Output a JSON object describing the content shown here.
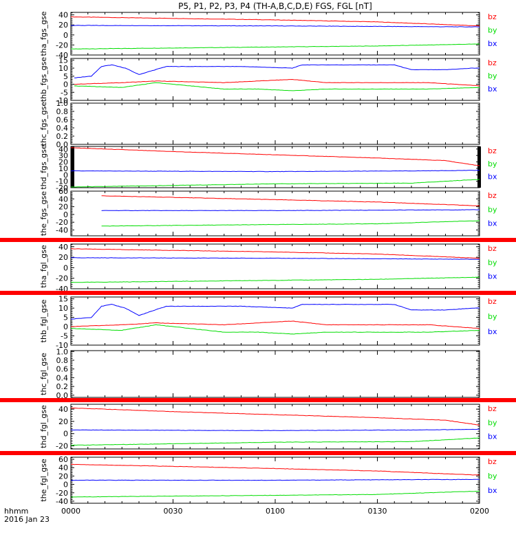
{
  "title": "P5, P1, P2, P3, P4 (TH-A,B,C,D,E) FGS, FGL [nT]",
  "time_axis": {
    "ticks": [
      "0000",
      "0030",
      "0100",
      "0130",
      "0200"
    ],
    "label_line1": "hhmm",
    "label_line2": "2016 Jan 23"
  },
  "colors": {
    "bx": "#0000ff",
    "by": "#00dd00",
    "bz": "#ff0000",
    "fill_bar": "#ff0000",
    "data_gap": "#000000"
  },
  "chart_data": [
    {
      "type": "line",
      "ylabel": "tha_fgs_gse",
      "yticks": [
        -40,
        -20,
        0,
        20,
        40
      ],
      "ylim": [
        -40,
        45
      ],
      "legend": [
        "bz",
        "by",
        "bx"
      ],
      "series": [
        {
          "name": "bz",
          "x_min": [
            0,
            60,
            90,
            120
          ],
          "y": [
            36,
            30,
            26,
            18
          ]
        },
        {
          "name": "by",
          "x_min": [
            0,
            60,
            90,
            120
          ],
          "y": [
            -28,
            -24,
            -22,
            -18
          ]
        },
        {
          "name": "bx",
          "x_min": [
            0,
            60,
            90,
            120
          ],
          "y": [
            19,
            18,
            17,
            16
          ]
        }
      ]
    },
    {
      "type": "line",
      "ylabel": "thb_fgs_gse",
      "yticks": [
        -10,
        -5,
        0,
        5,
        10,
        15
      ],
      "ylim": [
        -10,
        16
      ],
      "legend": [
        "bz",
        "by",
        "bx"
      ],
      "series": [
        {
          "name": "bz",
          "x_min": [
            1,
            15,
            25,
            45,
            55,
            65,
            75,
            90,
            105,
            120
          ],
          "y": [
            0,
            1,
            2,
            1,
            2,
            3,
            1,
            1,
            1,
            -1
          ]
        },
        {
          "name": "by",
          "x_min": [
            1,
            15,
            25,
            45,
            55,
            65,
            75,
            90,
            105,
            120
          ],
          "y": [
            -1,
            -2,
            1,
            -3,
            -3,
            -4,
            -3,
            -3,
            -3,
            -2
          ]
        },
        {
          "name": "bx",
          "x_min": [
            1,
            6,
            9,
            12,
            16,
            20,
            28,
            35,
            50,
            65,
            68,
            80,
            95,
            100,
            110,
            118,
            120
          ],
          "y": [
            4,
            5,
            11,
            12,
            10,
            6,
            11,
            11,
            11,
            10,
            12,
            12,
            12,
            9,
            9,
            10,
            10
          ]
        }
      ]
    },
    {
      "type": "line",
      "ylabel": "thc_fgs_gse",
      "yticks": [
        0.0,
        0.2,
        0.4,
        0.6,
        0.8,
        1.0
      ],
      "ylim": [
        0,
        1.0
      ],
      "series": []
    },
    {
      "type": "line",
      "ylabel": "thd_fgs_gse",
      "yticks": [
        -20,
        -10,
        0,
        10,
        20,
        30,
        40
      ],
      "ylim": [
        -20,
        44
      ],
      "legend": [
        "bz",
        "by",
        "bx"
      ],
      "data_gaps_min": [
        [
          0,
          0.6
        ],
        [
          119.4,
          120
        ]
      ],
      "series": [
        {
          "name": "bz",
          "x_min": [
            0,
            30,
            60,
            90,
            110,
            120
          ],
          "y": [
            42,
            36,
            31,
            26,
            22,
            14
          ]
        },
        {
          "name": "by",
          "x_min": [
            0,
            60,
            100,
            120
          ],
          "y": [
            -19,
            -14,
            -13,
            -7
          ]
        },
        {
          "name": "bx",
          "x_min": [
            0,
            60,
            100,
            120
          ],
          "y": [
            6,
            5,
            6,
            7
          ]
        }
      ]
    },
    {
      "type": "line",
      "ylabel": "the_fgs_gse",
      "yticks": [
        -40,
        -20,
        0,
        20,
        40,
        60
      ],
      "ylim": [
        -55,
        60
      ],
      "legend": [
        "bz",
        "by",
        "bx"
      ],
      "start_min": 9,
      "series": [
        {
          "name": "bz",
          "x_min": [
            9,
            60,
            90,
            120
          ],
          "y": [
            48,
            38,
            32,
            22
          ]
        },
        {
          "name": "by",
          "x_min": [
            9,
            60,
            90,
            120
          ],
          "y": [
            -30,
            -26,
            -24,
            -16
          ]
        },
        {
          "name": "bx",
          "x_min": [
            9,
            60,
            90,
            120
          ],
          "y": [
            10,
            10,
            11,
            12
          ]
        }
      ]
    },
    {
      "type": "line",
      "ylabel": "tha_fgl_gse",
      "yticks": [
        -40,
        -20,
        0,
        20,
        40
      ],
      "ylim": [
        -40,
        45
      ],
      "legend": [
        "bz",
        "by",
        "bx"
      ],
      "fill_bar_top": true,
      "series": [
        {
          "name": "bz",
          "x_min": [
            0,
            60,
            90,
            120
          ],
          "y": [
            36,
            30,
            26,
            18
          ]
        },
        {
          "name": "by",
          "x_min": [
            0,
            60,
            90,
            120
          ],
          "y": [
            -28,
            -24,
            -22,
            -18
          ]
        },
        {
          "name": "bx",
          "x_min": [
            0,
            60,
            90,
            120
          ],
          "y": [
            19,
            18,
            17,
            16
          ]
        }
      ]
    },
    {
      "type": "line",
      "ylabel": "thb_fgl_gse",
      "yticks": [
        -10,
        -5,
        0,
        5,
        10,
        15
      ],
      "ylim": [
        -10,
        16
      ],
      "legend": [
        "bz",
        "by",
        "bx"
      ],
      "fill_bar_top": true,
      "series": [
        {
          "name": "bz",
          "x_min": [
            0,
            15,
            25,
            45,
            55,
            65,
            75,
            90,
            105,
            120
          ],
          "y": [
            0,
            1,
            2,
            1,
            2,
            3,
            1,
            1,
            1,
            -1
          ]
        },
        {
          "name": "by",
          "x_min": [
            0,
            15,
            25,
            45,
            55,
            65,
            75,
            90,
            105,
            120
          ],
          "y": [
            -1,
            -2,
            1,
            -3,
            -3,
            -4,
            -3,
            -3,
            -3,
            -2
          ]
        },
        {
          "name": "bx",
          "x_min": [
            0,
            6,
            9,
            12,
            16,
            20,
            28,
            35,
            50,
            65,
            68,
            80,
            95,
            100,
            110,
            118,
            120
          ],
          "y": [
            4,
            5,
            11,
            12,
            10,
            6,
            11,
            11,
            11,
            10,
            12,
            12,
            12,
            9,
            9,
            10,
            10
          ]
        }
      ]
    },
    {
      "type": "line",
      "ylabel": "thc_fgl_gse",
      "yticks": [
        0.0,
        0.2,
        0.4,
        0.6,
        0.8,
        1.0
      ],
      "ylim": [
        -0.05,
        1.02
      ],
      "series": []
    },
    {
      "type": "line",
      "ylabel": "thd_fgl_gse",
      "yticks": [
        -20,
        0,
        20,
        40
      ],
      "ylim": [
        -25,
        48
      ],
      "legend": [
        "bz",
        "by",
        "bx"
      ],
      "fill_bar_top": true,
      "series": [
        {
          "name": "bz",
          "x_min": [
            0,
            30,
            60,
            90,
            110,
            120
          ],
          "y": [
            42,
            36,
            31,
            26,
            22,
            14
          ]
        },
        {
          "name": "by",
          "x_min": [
            0,
            60,
            100,
            120
          ],
          "y": [
            -19,
            -14,
            -13,
            -7
          ]
        },
        {
          "name": "bx",
          "x_min": [
            0,
            60,
            100,
            120
          ],
          "y": [
            6,
            5,
            6,
            7
          ]
        }
      ]
    },
    {
      "type": "line",
      "ylabel": "the_fgl_gse",
      "yticks": [
        -40,
        -20,
        0,
        20,
        40,
        60
      ],
      "ylim": [
        -45,
        65
      ],
      "legend": [
        "bz",
        "by",
        "bx"
      ],
      "fill_bar_top": true,
      "series": [
        {
          "name": "bz",
          "x_min": [
            0,
            60,
            90,
            120
          ],
          "y": [
            48,
            38,
            32,
            22
          ]
        },
        {
          "name": "by",
          "x_min": [
            0,
            60,
            90,
            120
          ],
          "y": [
            -30,
            -26,
            -24,
            -16
          ]
        },
        {
          "name": "bx",
          "x_min": [
            0,
            60,
            90,
            120
          ],
          "y": [
            10,
            10,
            11,
            12
          ]
        }
      ]
    }
  ]
}
